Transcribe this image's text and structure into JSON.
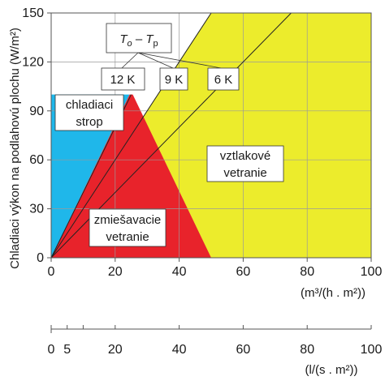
{
  "chart_data": {
    "type": "area",
    "title": "",
    "ylabel": "Chladiaci výkon na podlahovú plochu (W/m²)",
    "xlabel": "(m³/(h . m²))",
    "xlim": [
      0,
      100
    ],
    "ylim": [
      0,
      150
    ],
    "x_ticks": [
      0,
      20,
      40,
      60,
      80,
      100
    ],
    "y_ticks": [
      0,
      30,
      60,
      90,
      120,
      150
    ],
    "secondary_x_axis": {
      "label": "(l/(s . m²))",
      "ticks": [
        0,
        5,
        10,
        20,
        40,
        60,
        80,
        100
      ]
    },
    "regions": [
      {
        "name": "vztlakové vetranie",
        "label_lines": [
          "vztlakové",
          "vetranie"
        ],
        "color": "#ecec2c",
        "polygon": [
          [
            0,
            0
          ],
          [
            50,
            0
          ],
          [
            100,
            0
          ],
          [
            100,
            150
          ],
          [
            50,
            150
          ]
        ]
      },
      {
        "name": "chladiaci strop",
        "label_lines": [
          "chladiaci",
          "strop"
        ],
        "color": "#1fb7ea",
        "polygon": [
          [
            0,
            0
          ],
          [
            0,
            100
          ],
          [
            18,
            100
          ],
          [
            24.5,
            100
          ]
        ]
      },
      {
        "name": "zmiešavacie vetranie",
        "label_lines": [
          "zmiešavacie",
          "vetranie"
        ],
        "color": "#e8232b",
        "polygon": [
          [
            0,
            0
          ],
          [
            24.5,
            100
          ],
          [
            25.5,
            100
          ],
          [
            50,
            0
          ]
        ]
      }
    ],
    "series": [
      {
        "name": "12 K",
        "x": [
          0,
          25
        ],
        "y": [
          0,
          100
        ]
      },
      {
        "name": "9 K",
        "x": [
          0,
          50
        ],
        "y": [
          0,
          150
        ]
      },
      {
        "name": "6 K",
        "x": [
          0,
          75
        ],
        "y": [
          0,
          150
        ]
      }
    ],
    "annotation": {
      "title_main": "T",
      "title_sub_o": "o",
      "title_dash": " – ",
      "title_sub_p": "p",
      "labels": [
        "12 K",
        "9 K",
        "6 K"
      ]
    },
    "grid": true
  }
}
